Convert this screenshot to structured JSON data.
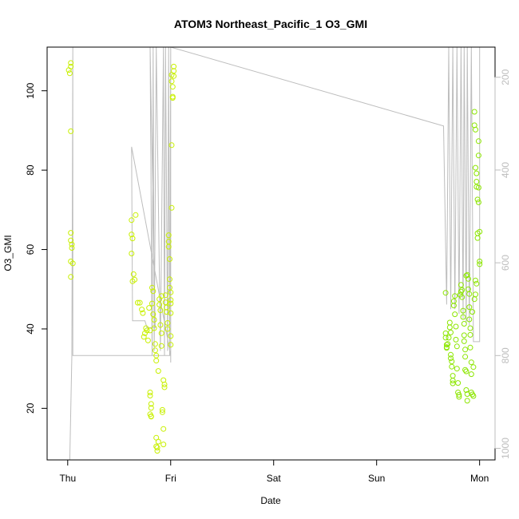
{
  "chart_data": {
    "type": "scatter",
    "title": "ATOM3 Northeast_Pacific_1 O3_GMI",
    "xlabel": "Date",
    "ylabel": "O3_GMI",
    "x_ticks": [
      "Thu",
      "Fri",
      "Sat",
      "Sun",
      "Mon"
    ],
    "xlim": [
      -0.2,
      4.15
    ],
    "ylim": [
      7,
      111
    ],
    "y_ticks": [
      20,
      40,
      60,
      80,
      100
    ],
    "y2_ticks": [
      200,
      400,
      600,
      800,
      1000
    ],
    "y2lim": [
      1025,
      135
    ],
    "grid": false,
    "colors": {
      "point_low": "#c8f000",
      "point_high": "#8ce600",
      "pressure_line": "#bdbdbd",
      "axis_right": "#bdbdbd"
    },
    "pressure_line": [
      [
        0.02,
        1025
      ],
      [
        0.04,
        800
      ],
      [
        0.05,
        135
      ],
      [
        0.05,
        800
      ],
      [
        1.0,
        800
      ],
      [
        0.62,
        350
      ],
      [
        0.63,
        725
      ],
      [
        0.75,
        725
      ],
      [
        0.77,
        740
      ],
      [
        0.85,
        740
      ],
      [
        0.8,
        135
      ],
      [
        0.82,
        800
      ],
      [
        0.83,
        135
      ],
      [
        0.84,
        790
      ],
      [
        0.86,
        135
      ],
      [
        0.9,
        790
      ],
      [
        0.93,
        135
      ],
      [
        0.94,
        800
      ],
      [
        0.95,
        135
      ],
      [
        0.97,
        790
      ],
      [
        0.98,
        135
      ],
      [
        0.99,
        800
      ],
      [
        1.0,
        135
      ],
      [
        1.0,
        815
      ],
      [
        1.0,
        135
      ],
      [
        3.65,
        305
      ],
      [
        3.68,
        690
      ],
      [
        3.7,
        135
      ],
      [
        3.72,
        700
      ],
      [
        3.74,
        135
      ],
      [
        3.76,
        700
      ],
      [
        3.78,
        135
      ],
      [
        3.8,
        710
      ],
      [
        3.82,
        135
      ],
      [
        3.84,
        720
      ],
      [
        3.85,
        135
      ],
      [
        3.87,
        730
      ],
      [
        3.88,
        135
      ],
      [
        3.9,
        735
      ],
      [
        3.92,
        135
      ],
      [
        3.94,
        770
      ],
      [
        4.0,
        770
      ],
      [
        4.0,
        135
      ]
    ],
    "series": [
      {
        "points": [
          [
            0.01,
            105.2
          ],
          [
            0.02,
            104.4
          ],
          [
            0.03,
            106.1
          ],
          [
            0.03,
            107.0
          ],
          [
            0.03,
            89.8
          ],
          [
            0.03,
            64.2
          ],
          [
            0.03,
            62.3
          ],
          [
            0.04,
            61.3
          ],
          [
            0.04,
            60.4
          ],
          [
            0.03,
            57.0
          ],
          [
            0.05,
            56.5
          ],
          [
            0.03,
            53.1
          ],
          [
            0.62,
            67.4
          ],
          [
            0.62,
            63.8
          ],
          [
            0.63,
            62.8
          ],
          [
            0.62,
            59.0
          ],
          [
            0.64,
            53.8
          ],
          [
            0.63,
            52.0
          ],
          [
            0.65,
            52.4
          ],
          [
            0.66,
            68.7
          ],
          [
            0.68,
            46.6
          ],
          [
            0.7,
            46.6
          ],
          [
            0.72,
            44.9
          ],
          [
            0.73,
            44.0
          ],
          [
            0.74,
            38.0
          ],
          [
            0.75,
            38.9
          ],
          [
            0.76,
            40.2
          ],
          [
            0.77,
            39.6
          ],
          [
            0.78,
            37.1
          ],
          [
            0.79,
            45.3
          ],
          [
            0.8,
            39.6
          ],
          [
            0.8,
            23.2
          ],
          [
            0.8,
            24.0
          ],
          [
            0.81,
            21.1
          ],
          [
            0.81,
            20.1
          ],
          [
            0.8,
            18.5
          ],
          [
            0.81,
            18.0
          ],
          [
            0.81,
            17.9
          ],
          [
            0.82,
            50.4
          ],
          [
            0.83,
            49.5
          ],
          [
            0.82,
            46.4
          ],
          [
            0.83,
            43.7
          ],
          [
            0.84,
            42.3
          ],
          [
            0.84,
            40.2
          ],
          [
            0.85,
            36.2
          ],
          [
            0.85,
            34.6
          ],
          [
            0.86,
            33.3
          ],
          [
            0.86,
            32.0
          ],
          [
            0.86,
            12.6
          ],
          [
            0.86,
            10.4
          ],
          [
            0.87,
            9.3
          ],
          [
            0.87,
            10.1
          ],
          [
            0.88,
            11.6
          ],
          [
            0.88,
            29.4
          ],
          [
            0.89,
            47.5
          ],
          [
            0.89,
            46.1
          ],
          [
            0.9,
            44.7
          ],
          [
            0.9,
            41.0
          ],
          [
            0.91,
            48.3
          ],
          [
            0.91,
            38.9
          ],
          [
            0.91,
            35.7
          ],
          [
            0.92,
            19.0
          ],
          [
            0.92,
            19.6
          ],
          [
            0.93,
            14.8
          ],
          [
            0.93,
            10.9
          ],
          [
            0.93,
            27.1
          ],
          [
            0.94,
            26.0
          ],
          [
            0.94,
            25.3
          ],
          [
            0.95,
            46.7
          ],
          [
            0.95,
            48.5
          ],
          [
            0.96,
            45.4
          ],
          [
            0.96,
            44.3
          ],
          [
            0.97,
            41.5
          ],
          [
            0.97,
            40.0
          ],
          [
            0.98,
            63.6
          ],
          [
            0.98,
            62.0
          ],
          [
            0.98,
            60.7
          ],
          [
            0.99,
            57.6
          ],
          [
            0.99,
            52.5
          ],
          [
            0.99,
            50.4
          ],
          [
            1.0,
            49.2
          ],
          [
            1.0,
            47.3
          ],
          [
            1.0,
            46.4
          ],
          [
            1.0,
            44.0
          ],
          [
            1.0,
            38.2
          ],
          [
            1.0,
            36.0
          ],
          [
            1.01,
            86.3
          ],
          [
            1.01,
            70.5
          ],
          [
            1.01,
            104.0
          ],
          [
            1.01,
            102.4
          ],
          [
            1.02,
            101.0
          ],
          [
            1.02,
            98.2
          ],
          [
            1.02,
            98.5
          ],
          [
            1.03,
            106.1
          ],
          [
            1.03,
            105.0
          ],
          [
            1.03,
            103.7
          ]
        ]
      },
      {
        "points": [
          [
            3.67,
            49.1
          ],
          [
            3.67,
            38.9
          ],
          [
            3.67,
            37.8
          ],
          [
            3.68,
            36.0
          ],
          [
            3.68,
            35.2
          ],
          [
            3.68,
            35.4
          ],
          [
            3.69,
            36.2
          ],
          [
            3.7,
            37.8
          ],
          [
            3.71,
            41.6
          ],
          [
            3.71,
            40.4
          ],
          [
            3.72,
            39.1
          ],
          [
            3.72,
            33.5
          ],
          [
            3.72,
            32.6
          ],
          [
            3.73,
            31.8
          ],
          [
            3.73,
            30.5
          ],
          [
            3.74,
            28.2
          ],
          [
            3.74,
            27.0
          ],
          [
            3.74,
            26.3
          ],
          [
            3.75,
            47.0
          ],
          [
            3.75,
            45.9
          ],
          [
            3.76,
            48.3
          ],
          [
            3.76,
            43.7
          ],
          [
            3.77,
            40.6
          ],
          [
            3.77,
            37.3
          ],
          [
            3.78,
            35.6
          ],
          [
            3.78,
            30.0
          ],
          [
            3.79,
            26.4
          ],
          [
            3.79,
            24.0
          ],
          [
            3.8,
            23.4
          ],
          [
            3.8,
            22.9
          ],
          [
            3.81,
            48.6
          ],
          [
            3.82,
            49.4
          ],
          [
            3.82,
            51.1
          ],
          [
            3.83,
            49.8
          ],
          [
            3.83,
            48.0
          ],
          [
            3.84,
            44.6
          ],
          [
            3.84,
            43.0
          ],
          [
            3.85,
            41.3
          ],
          [
            3.85,
            38.4
          ],
          [
            3.85,
            36.9
          ],
          [
            3.86,
            34.8
          ],
          [
            3.86,
            33.0
          ],
          [
            3.86,
            29.7
          ],
          [
            3.87,
            29.3
          ],
          [
            3.87,
            24.6
          ],
          [
            3.88,
            23.6
          ],
          [
            3.88,
            21.9
          ],
          [
            3.87,
            53.4
          ],
          [
            3.88,
            53.6
          ],
          [
            3.89,
            52.6
          ],
          [
            3.89,
            50.0
          ],
          [
            3.9,
            48.8
          ],
          [
            3.9,
            45.5
          ],
          [
            3.9,
            42.4
          ],
          [
            3.91,
            40.2
          ],
          [
            3.91,
            38.5
          ],
          [
            3.91,
            35.3
          ],
          [
            3.92,
            31.6
          ],
          [
            3.92,
            28.6
          ],
          [
            3.92,
            24.0
          ],
          [
            3.93,
            23.5
          ],
          [
            3.94,
            23.1
          ],
          [
            3.94,
            30.4
          ],
          [
            3.95,
            94.7
          ],
          [
            3.95,
            91.3
          ],
          [
            3.96,
            90.2
          ],
          [
            3.96,
            80.6
          ],
          [
            3.97,
            79.2
          ],
          [
            3.97,
            77.1
          ],
          [
            3.97,
            75.8
          ],
          [
            3.98,
            72.6
          ],
          [
            3.98,
            62.9
          ],
          [
            3.98,
            64.1
          ],
          [
            3.99,
            87.3
          ],
          [
            3.99,
            83.7
          ],
          [
            3.99,
            75.6
          ],
          [
            3.99,
            71.9
          ],
          [
            4.0,
            64.5
          ],
          [
            4.0,
            57.0
          ],
          [
            4.0,
            56.3
          ],
          [
            3.96,
            52.2
          ],
          [
            3.97,
            51.4
          ],
          [
            3.96,
            48.7
          ],
          [
            3.95,
            47.5
          ],
          [
            3.93,
            44.3
          ]
        ]
      }
    ]
  }
}
